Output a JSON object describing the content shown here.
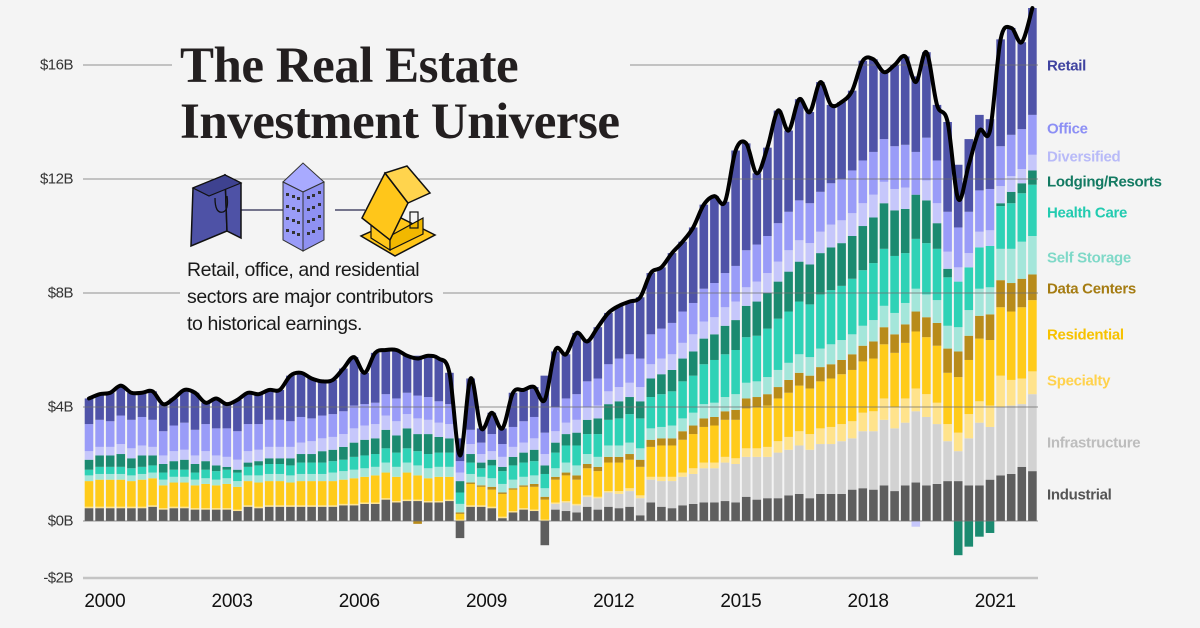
{
  "title": {
    "line1": "The Real Estate",
    "line2": "Investment Universe"
  },
  "subtitle": {
    "line1": "Retail, office, and residential",
    "line2": "sectors are major contributors",
    "line3": "to historical earnings."
  },
  "icons": [
    {
      "name": "shopping-bag-icon",
      "color": "#4e52a6"
    },
    {
      "name": "office-building-icon",
      "color": "#9a9cf5"
    },
    {
      "name": "house-icon",
      "color": "#ffc61a"
    }
  ],
  "chart_data": {
    "type": "bar",
    "stacked": true,
    "frequency": "quarterly",
    "ylim": [
      -2,
      18.2
    ],
    "y_ticks": [
      -2,
      0,
      4,
      8,
      12,
      16
    ],
    "y_tick_labels": [
      "-$2B",
      "$0B",
      "$4B",
      "$8B",
      "$12B",
      "$16B"
    ],
    "x_ticks": [
      2000,
      2003,
      2006,
      2009,
      2012,
      2015,
      2018,
      2021
    ],
    "x_tick_labels": [
      "2000",
      "2003",
      "2006",
      "2009",
      "2012",
      "2015",
      "2018",
      "2021"
    ],
    "grid": true,
    "legend_placement": "right",
    "line_color": "#000000",
    "net_total": [
      4.3,
      4.45,
      4.5,
      4.75,
      4.5,
      4.5,
      4.55,
      4.1,
      4.3,
      4.6,
      4.5,
      4.15,
      4.3,
      4.1,
      4.25,
      4.5,
      4.45,
      4.6,
      4.6,
      5.1,
      5.2,
      5.0,
      4.9,
      4.95,
      5.35,
      5.75,
      5.2,
      5.9,
      6.0,
      6.0,
      5.8,
      5.7,
      5.8,
      5.7,
      5.2,
      2.3,
      5.0,
      3.25,
      3.8,
      3.25,
      4.5,
      4.6,
      4.7,
      4.25,
      6.0,
      5.85,
      6.6,
      6.3,
      6.8,
      7.3,
      7.55,
      7.7,
      7.85,
      8.7,
      8.9,
      9.4,
      9.8,
      10.3,
      11.1,
      11.4,
      11.2,
      13.0,
      13.25,
      12.2,
      13.1,
      14.4,
      13.7,
      14.8,
      14.35,
      15.4,
      14.6,
      14.7,
      15.1,
      16.15,
      16.2,
      15.75,
      16.0,
      16.3,
      15.4,
      16.45,
      14.6,
      14.0,
      11.3,
      12.5,
      13.7,
      13.7,
      16.9,
      17.3,
      16.8,
      18.0
    ],
    "series": [
      {
        "name": "Industrial",
        "color": "#5e5e5e",
        "label_color": "#555555",
        "values": [
          0.45,
          0.45,
          0.45,
          0.45,
          0.45,
          0.45,
          0.5,
          0.4,
          0.45,
          0.45,
          0.4,
          0.4,
          0.4,
          0.4,
          0.35,
          0.5,
          0.45,
          0.5,
          0.5,
          0.5,
          0.5,
          0.5,
          0.5,
          0.5,
          0.55,
          0.55,
          0.6,
          0.6,
          0.75,
          0.65,
          0.7,
          0.7,
          0.65,
          0.65,
          0.7,
          -0.6,
          0.5,
          0.5,
          0.45,
          0.1,
          0.3,
          0.4,
          0.35,
          -0.85,
          0.4,
          0.35,
          0.3,
          0.5,
          0.4,
          0.5,
          0.45,
          0.5,
          0.2,
          0.65,
          0.5,
          0.45,
          0.55,
          0.6,
          0.65,
          0.65,
          0.7,
          0.65,
          0.85,
          0.75,
          0.8,
          0.8,
          0.9,
          0.95,
          0.8,
          0.95,
          0.95,
          0.95,
          1.1,
          1.15,
          1.1,
          1.25,
          1.05,
          1.25,
          1.35,
          1.25,
          1.3,
          1.4,
          1.4,
          1.25,
          1.25,
          1.45,
          1.6,
          1.65,
          1.9,
          1.75
        ]
      },
      {
        "name": "Infrastructure",
        "color": "#d2d2d2",
        "label_color": "#bdbdbd",
        "values": [
          0,
          0,
          0,
          0,
          0,
          0,
          0,
          0,
          0,
          0,
          0,
          0,
          0,
          0,
          0,
          0,
          0,
          0,
          0,
          0,
          0,
          0,
          0,
          0,
          0,
          0,
          0,
          0,
          0,
          0,
          0,
          0,
          0,
          0,
          0,
          0,
          0,
          0,
          0,
          0,
          0,
          0,
          0,
          0,
          0.2,
          0.3,
          0.25,
          0.35,
          0.4,
          0.5,
          0.5,
          0.55,
          0.6,
          0.8,
          0.9,
          0.95,
          1.0,
          1.05,
          1.2,
          1.2,
          1.35,
          1.35,
          1.4,
          1.5,
          1.45,
          1.6,
          1.6,
          1.7,
          1.7,
          1.75,
          1.75,
          1.85,
          1.8,
          2.0,
          2.05,
          2.3,
          2.2,
          2.2,
          2.5,
          2.4,
          2.1,
          1.4,
          1.05,
          1.65,
          2.2,
          1.85,
          2.4,
          2.4,
          2.2,
          2.7
        ]
      },
      {
        "name": "Specialty",
        "color": "#ffe38c",
        "label_color": "#ffd24d",
        "values": [
          0.05,
          0.05,
          0.05,
          0.05,
          0.05,
          0.05,
          0.05,
          0.05,
          0.05,
          0.05,
          0.05,
          0.05,
          0.05,
          0.05,
          0.05,
          0.05,
          0.05,
          0.05,
          0.05,
          0.05,
          0.05,
          0.05,
          0.05,
          0.05,
          0.05,
          0.05,
          0.05,
          0.05,
          0.05,
          0.05,
          0.05,
          0.05,
          0.05,
          0.05,
          0.05,
          0.05,
          0.05,
          0.05,
          0.05,
          0.05,
          0.05,
          0.05,
          0.05,
          0.05,
          0.05,
          0.05,
          0.05,
          0.05,
          0.05,
          0.05,
          0.1,
          0.1,
          0.1,
          0.1,
          0.15,
          0.15,
          0.15,
          0.2,
          0.2,
          0.2,
          0.2,
          0.2,
          0.3,
          0.3,
          0.35,
          0.4,
          0.45,
          0.5,
          0.55,
          0.55,
          0.6,
          0.6,
          0.6,
          0.65,
          0.7,
          0.75,
          0.75,
          0.85,
          0.8,
          0.8,
          0.75,
          0.6,
          0.65,
          0.85,
          0.75,
          0.75,
          1.1,
          0.9,
          0.9,
          0.8
        ]
      },
      {
        "name": "Residential",
        "color": "#ffcb1a",
        "label_color": "#f7c200",
        "values": [
          0.9,
          0.95,
          0.95,
          0.95,
          0.9,
          0.95,
          0.95,
          0.8,
          0.85,
          0.85,
          0.8,
          0.85,
          0.8,
          0.85,
          0.8,
          0.85,
          0.85,
          0.85,
          0.85,
          0.8,
          0.85,
          0.85,
          0.85,
          0.85,
          0.85,
          0.9,
          0.9,
          0.95,
          0.9,
          0.85,
          0.95,
          0.85,
          0.8,
          0.85,
          0.8,
          0.2,
          0.75,
          0.65,
          0.6,
          0.8,
          0.75,
          0.75,
          0.8,
          0.7,
          0.8,
          0.9,
          0.85,
          0.95,
          0.9,
          1.0,
          1.0,
          1.0,
          1.0,
          1.05,
          1.1,
          1.1,
          1.15,
          1.2,
          1.25,
          1.3,
          1.3,
          1.35,
          1.4,
          1.45,
          1.45,
          1.5,
          1.55,
          1.6,
          1.6,
          1.65,
          1.7,
          1.75,
          1.8,
          1.8,
          1.85,
          1.9,
          1.9,
          1.95,
          2.0,
          2.0,
          2.0,
          1.8,
          1.95,
          1.9,
          2.2,
          2.3,
          2.4,
          2.4,
          2.5,
          2.5
        ]
      },
      {
        "name": "Data Centers",
        "color": "#b88b1a",
        "label_color": "#a57c12",
        "values": [
          0,
          0,
          0,
          0,
          0,
          0,
          0,
          0,
          0,
          0,
          0,
          0,
          0,
          0,
          0,
          0,
          0,
          0,
          0,
          0,
          0,
          0,
          0,
          0,
          0,
          0,
          0,
          0,
          0,
          0,
          0,
          -0.1,
          0,
          0,
          0,
          0.05,
          0.05,
          0.05,
          0.1,
          0.05,
          0.05,
          0.05,
          0.1,
          0.1,
          0.1,
          0.1,
          0.15,
          0.15,
          0.15,
          0.2,
          0.2,
          0.2,
          0.25,
          0.25,
          0.25,
          0.25,
          0.3,
          0.3,
          0.3,
          0.3,
          0.3,
          0.35,
          0.35,
          0.35,
          0.4,
          0.4,
          0.45,
          0.45,
          0.45,
          0.5,
          0.5,
          0.5,
          0.55,
          0.55,
          0.6,
          0.6,
          0.65,
          0.65,
          0.7,
          0.7,
          0.8,
          0.85,
          0.9,
          0.85,
          0.8,
          0.9,
          0.95,
          1.0,
          1.0,
          0.9
        ]
      },
      {
        "name": "Self Storage",
        "color": "#a4e6da",
        "label_color": "#7fd9c8",
        "values": [
          0.2,
          0.2,
          0.2,
          0.2,
          0.2,
          0.2,
          0.2,
          0.2,
          0.2,
          0.2,
          0.2,
          0.2,
          0.2,
          0.2,
          0.2,
          0.2,
          0.25,
          0.25,
          0.25,
          0.25,
          0.25,
          0.25,
          0.25,
          0.3,
          0.3,
          0.3,
          0.3,
          0.3,
          0.35,
          0.35,
          0.35,
          0.35,
          0.35,
          0.35,
          0.35,
          0.3,
          0.3,
          0.3,
          0.3,
          0.3,
          0.3,
          0.3,
          0.3,
          0.3,
          0.3,
          0.35,
          0.35,
          0.35,
          0.35,
          0.4,
          0.4,
          0.4,
          0.4,
          0.4,
          0.4,
          0.45,
          0.45,
          0.45,
          0.5,
          0.5,
          0.5,
          0.55,
          0.55,
          0.55,
          0.6,
          0.6,
          0.6,
          0.65,
          0.65,
          0.65,
          0.7,
          0.7,
          0.7,
          0.7,
          0.75,
          0.75,
          0.75,
          0.75,
          0.8,
          0.8,
          0.8,
          0.8,
          0.85,
          0.9,
          0.95,
          0.95,
          1.1,
          1.2,
          1.3,
          1.35
        ]
      },
      {
        "name": "Health Care",
        "color": "#2fd2b6",
        "label_color": "#22cbb0",
        "values": [
          0.2,
          0.25,
          0.25,
          0.25,
          0.25,
          0.25,
          0.25,
          0.25,
          0.25,
          0.25,
          0.25,
          0.3,
          0.3,
          0.3,
          0.3,
          0.3,
          0.35,
          0.35,
          0.35,
          0.35,
          0.4,
          0.4,
          0.4,
          0.4,
          0.4,
          0.45,
          0.45,
          0.45,
          0.5,
          0.5,
          0.5,
          0.5,
          0.5,
          0.5,
          0.5,
          0.4,
          0.4,
          0.3,
          0.45,
          0.45,
          0.5,
          0.5,
          0.5,
          0.5,
          0.55,
          0.6,
          0.7,
          0.7,
          0.8,
          0.9,
          0.95,
          1.0,
          1.05,
          1.1,
          1.15,
          1.2,
          1.3,
          1.3,
          1.4,
          1.5,
          1.5,
          1.55,
          1.6,
          1.6,
          1.7,
          1.8,
          1.8,
          1.85,
          1.85,
          1.9,
          1.9,
          1.9,
          1.95,
          1.95,
          2.0,
          2.0,
          2.0,
          1.75,
          1.75,
          1.8,
          1.8,
          1.7,
          1.6,
          1.5,
          1.45,
          1.45,
          1.5,
          1.6,
          1.7,
          1.8
        ]
      },
      {
        "name": "Lodging/Resorts",
        "color": "#1b8a70",
        "label_color": "#137a62",
        "values": [
          0.35,
          0.4,
          0.4,
          0.45,
          0.35,
          0.4,
          0.35,
          0.3,
          0.3,
          0.35,
          0.3,
          0.3,
          0.2,
          0.1,
          0.1,
          0.15,
          0.15,
          0.2,
          0.2,
          0.25,
          0.3,
          0.3,
          0.4,
          0.4,
          0.45,
          0.5,
          0.55,
          0.55,
          0.65,
          0.6,
          0.7,
          0.6,
          0.7,
          0.55,
          0.5,
          0.4,
          0.3,
          0.2,
          0.2,
          0.15,
          0.3,
          0.35,
          0.4,
          0.3,
          0.35,
          0.4,
          0.45,
          0.5,
          0.55,
          0.55,
          0.6,
          0.6,
          0.6,
          0.65,
          0.7,
          0.75,
          0.8,
          0.85,
          0.9,
          0.9,
          1.0,
          1.05,
          1.1,
          1.2,
          1.25,
          1.3,
          1.4,
          1.4,
          1.4,
          1.45,
          1.5,
          1.5,
          1.5,
          1.55,
          1.6,
          1.6,
          1.6,
          1.55,
          1.55,
          1.5,
          0.9,
          0.3,
          -1.2,
          -0.9,
          -0.55,
          -0.42,
          0.1,
          0.4,
          0.35,
          0.5
        ]
      },
      {
        "name": "Diversified",
        "color": "#c6c7fb",
        "label_color": "#b8baf8",
        "values": [
          0.3,
          0.3,
          0.3,
          0.35,
          0.35,
          0.35,
          0.3,
          0.3,
          0.35,
          0.35,
          0.3,
          0.35,
          0.35,
          0.35,
          0.35,
          0.4,
          0.4,
          0.4,
          0.4,
          0.4,
          0.4,
          0.45,
          0.45,
          0.45,
          0.45,
          0.5,
          0.5,
          0.5,
          0.5,
          0.5,
          0.5,
          0.55,
          0.5,
          0.5,
          0.5,
          0.3,
          0.35,
          0.3,
          0.3,
          0.35,
          0.35,
          0.35,
          0.4,
          0.4,
          0.4,
          0.4,
          0.45,
          0.45,
          0.45,
          0.45,
          0.5,
          0.5,
          0.5,
          0.5,
          0.55,
          0.55,
          0.55,
          0.6,
          0.6,
          0.6,
          0.65,
          0.65,
          0.65,
          0.7,
          0.7,
          0.7,
          0.75,
          0.75,
          0.75,
          0.75,
          0.8,
          0.8,
          0.8,
          0.8,
          0.8,
          0.75,
          0.75,
          0.75,
          -0.2,
          0.7,
          0.7,
          0.6,
          0.5,
          0.5,
          0.55,
          0.55,
          0.6,
          0.55,
          0.5,
          0.55
        ]
      },
      {
        "name": "Office",
        "color": "#9a9cf8",
        "label_color": "#8c8ff5",
        "values": [
          0.95,
          0.95,
          0.9,
          1.0,
          1.0,
          1.0,
          0.95,
          0.85,
          0.9,
          0.95,
          0.9,
          0.95,
          0.95,
          1.0,
          1.0,
          0.95,
          0.9,
          0.95,
          0.95,
          0.9,
          0.9,
          0.8,
          0.8,
          0.8,
          0.8,
          0.8,
          0.75,
          0.75,
          0.75,
          0.8,
          0.75,
          0.8,
          0.8,
          0.75,
          0.7,
          0.4,
          0.5,
          0.4,
          0.6,
          0.45,
          0.7,
          0.75,
          0.75,
          0.75,
          0.85,
          0.85,
          0.9,
          0.9,
          0.95,
          0.95,
          1.0,
          1.0,
          1.0,
          1.05,
          1.05,
          1.1,
          1.1,
          1.1,
          1.15,
          1.2,
          1.2,
          1.25,
          1.3,
          1.3,
          1.3,
          1.35,
          1.35,
          1.4,
          1.4,
          1.4,
          1.45,
          1.45,
          1.5,
          1.5,
          1.5,
          1.5,
          1.5,
          1.5,
          1.5,
          1.5,
          1.5,
          1.4,
          1.4,
          1.45,
          1.45,
          1.45,
          1.4,
          1.45,
          1.4,
          1.4
        ]
      },
      {
        "name": "Retail",
        "color": "#4f53a8",
        "label_color": "#3f43a0",
        "values": [
          0.9,
          0.9,
          1.0,
          1.05,
          0.95,
          0.85,
          1.0,
          0.95,
          0.95,
          1.15,
          1.3,
          0.75,
          1.05,
          0.85,
          1.1,
          1.1,
          1.05,
          1.05,
          1.05,
          1.6,
          1.55,
          1.4,
          1.2,
          1.2,
          1.5,
          1.7,
          1.1,
          1.75,
          1.55,
          1.7,
          1.3,
          1.4,
          1.45,
          1.5,
          1.1,
          0.8,
          1.8,
          0.5,
          0.75,
          0.55,
          1.2,
          1.1,
          1.05,
          2.0,
          1.95,
          1.55,
          2.15,
          1.4,
          1.8,
          1.8,
          1.85,
          1.85,
          2.15,
          2.15,
          2.15,
          2.45,
          2.45,
          2.65,
          2.95,
          3.05,
          2.5,
          4.05,
          3.75,
          2.5,
          3.1,
          3.95,
          2.85,
          3.55,
          3.2,
          3.85,
          2.75,
          2.7,
          2.8,
          3.5,
          3.25,
          2.35,
          2.85,
          3.1,
          2.65,
          3.0,
          1.95,
          3.15,
          2.2,
          2.55,
          2.65,
          2.45,
          3.75,
          3.75,
          3.05,
          3.75
        ]
      }
    ]
  }
}
